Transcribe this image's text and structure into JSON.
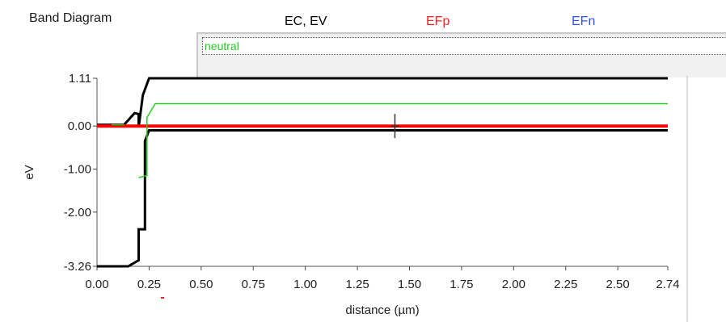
{
  "window": {
    "title": "Band Diagram"
  },
  "legend": {
    "headers": [
      {
        "label": "EC, EV",
        "color": "#000000"
      },
      {
        "label": "EFp",
        "color": "#ff2020"
      },
      {
        "label": "EFn",
        "color": "#3050ff"
      }
    ],
    "selected_value": "neutral",
    "selected_color": "#22cc22"
  },
  "chart_data": {
    "type": "line",
    "title": "",
    "xlabel": "distance (µm)",
    "ylabel": "eV",
    "xlim": [
      0,
      2.74
    ],
    "ylim": [
      -3.26,
      1.11
    ],
    "x_ticks": [
      {
        "value": 0.0,
        "label": "0.00"
      },
      {
        "value": 0.25,
        "label": "0.25"
      },
      {
        "value": 0.5,
        "label": "0.50"
      },
      {
        "value": 0.75,
        "label": "0.75"
      },
      {
        "value": 1.0,
        "label": "1.00"
      },
      {
        "value": 1.25,
        "label": "1.25"
      },
      {
        "value": 1.5,
        "label": "1.50"
      },
      {
        "value": 1.75,
        "label": "1.75"
      },
      {
        "value": 2.0,
        "label": "2.00"
      },
      {
        "value": 2.25,
        "label": "2.25"
      },
      {
        "value": 2.5,
        "label": "2.50"
      },
      {
        "value": 2.74,
        "label": "2.74"
      }
    ],
    "y_ticks": [
      {
        "value": 1.11,
        "label": "1.11"
      },
      {
        "value": 0.0,
        "label": "0.00"
      },
      {
        "value": -1.0,
        "label": "-1.00"
      },
      {
        "value": -2.0,
        "label": "-2.00"
      },
      {
        "value": -3.26,
        "label": "-3.26"
      }
    ],
    "series": [
      {
        "color": "#000000",
        "width": 3,
        "points": [
          [
            0,
            0.03
          ],
          [
            0.13,
            0.03
          ],
          [
            0.18,
            0.3
          ],
          [
            0.2,
            0.28
          ],
          [
            0.2,
            -0.03
          ],
          [
            0.22,
            0.72
          ],
          [
            0.25,
            1.11
          ],
          [
            2.74,
            1.11
          ]
        ]
      },
      {
        "color": "#000000",
        "width": 3,
        "points": [
          [
            0,
            -3.26
          ],
          [
            0.15,
            -3.26
          ],
          [
            0.2,
            -3.12
          ],
          [
            0.2,
            -2.4
          ],
          [
            0.23,
            -2.4
          ],
          [
            0.23,
            -0.35
          ],
          [
            0.25,
            -0.1
          ],
          [
            2.74,
            -0.1
          ]
        ]
      },
      {
        "color": "#ff0000",
        "width": 4,
        "points": [
          [
            0,
            0.0
          ],
          [
            2.74,
            0.0
          ]
        ]
      },
      {
        "color": "#22cc22",
        "width": 1.5,
        "points": [
          [
            0.2,
            -1.2
          ],
          [
            0.24,
            -1.15
          ],
          [
            0.24,
            0.2
          ],
          [
            0.28,
            0.52
          ],
          [
            2.74,
            0.52
          ]
        ]
      },
      {
        "color": "#22cc22",
        "width": 1.5,
        "points": [
          [
            0.07,
            0.03
          ],
          [
            0.13,
            0.03
          ]
        ]
      }
    ],
    "cursor": {
      "x": 1.43,
      "y": 0.0
    }
  }
}
